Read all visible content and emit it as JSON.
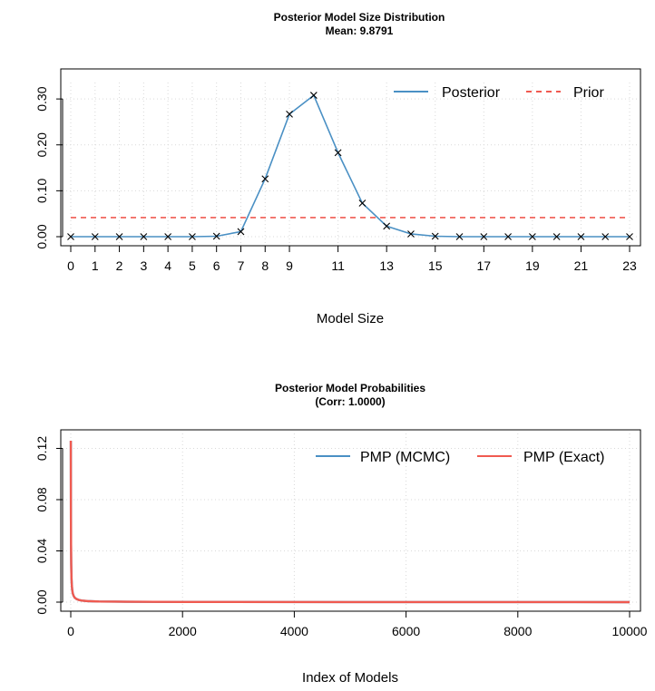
{
  "chart_data": [
    {
      "type": "line",
      "title": "Posterior Model Size Distribution",
      "subtitle": "Mean: 9.8791",
      "xlabel": "Model Size",
      "ylabel": "",
      "xlim": [
        0,
        23
      ],
      "ylim": [
        0,
        0.32
      ],
      "grid": true,
      "legend_position": "top-right",
      "x_tick_labels": [
        "0",
        "1",
        "2",
        "3",
        "4",
        "5",
        "6",
        "7",
        "8",
        "9",
        "11",
        "13",
        "15",
        "17",
        "19",
        "21",
        "23"
      ],
      "y_tick_labels": [
        "0.00",
        "0.10",
        "0.20",
        "0.30"
      ],
      "x": [
        0,
        1,
        2,
        3,
        4,
        5,
        6,
        7,
        8,
        9,
        10,
        11,
        12,
        13,
        14,
        15,
        16,
        17,
        18,
        19,
        20,
        21,
        22,
        23
      ],
      "series": [
        {
          "name": "Posterior",
          "color": "#4a90c4",
          "style": "solid",
          "markers": "x",
          "values": [
            0,
            0,
            0,
            0,
            0,
            0,
            0.001,
            0.011,
            0.126,
            0.267,
            0.308,
            0.183,
            0.073,
            0.023,
            0.006,
            0.001,
            0,
            0,
            0,
            0,
            0,
            0,
            0,
            0
          ]
        },
        {
          "name": "Prior",
          "color": "#f05a50",
          "style": "dashed",
          "values": [
            0.0417,
            0.0417,
            0.0417,
            0.0417,
            0.0417,
            0.0417,
            0.0417,
            0.0417,
            0.0417,
            0.0417,
            0.0417,
            0.0417,
            0.0417,
            0.0417,
            0.0417,
            0.0417,
            0.0417,
            0.0417,
            0.0417,
            0.0417,
            0.0417,
            0.0417,
            0.0417,
            0.0417
          ]
        }
      ]
    },
    {
      "type": "line",
      "title": "Posterior Model Probabilities",
      "subtitle": "(Corr: 1.0000)",
      "xlabel": "Index of Models",
      "ylabel": "",
      "xlim": [
        0,
        10000
      ],
      "ylim": [
        0,
        0.126
      ],
      "grid": true,
      "legend_position": "top-right",
      "x_tick_labels": [
        "0",
        "2000",
        "4000",
        "6000",
        "8000",
        "10000"
      ],
      "y_tick_labels": [
        "0.00",
        "0.04",
        "0.08",
        "0.12"
      ],
      "x": [
        1,
        2,
        3,
        5,
        8,
        12,
        18,
        25,
        35,
        50,
        70,
        100,
        150,
        200,
        300,
        500,
        1000,
        2000,
        5000,
        10000
      ],
      "series": [
        {
          "name": "PMP (MCMC)",
          "color": "#4a90c4",
          "style": "solid",
          "values": [
            0.126,
            0.09,
            0.065,
            0.045,
            0.03,
            0.02,
            0.014,
            0.01,
            0.007,
            0.005,
            0.0035,
            0.0025,
            0.0016,
            0.0012,
            0.0008,
            0.0005,
            0.0003,
            0.00015,
            5e-05,
            1e-05
          ]
        },
        {
          "name": "PMP (Exact)",
          "color": "#f05a50",
          "style": "solid",
          "values": [
            0.126,
            0.09,
            0.065,
            0.045,
            0.03,
            0.02,
            0.014,
            0.01,
            0.007,
            0.005,
            0.0035,
            0.0025,
            0.0016,
            0.0012,
            0.0008,
            0.0005,
            0.0003,
            0.00015,
            5e-05,
            1e-05
          ]
        }
      ]
    }
  ]
}
